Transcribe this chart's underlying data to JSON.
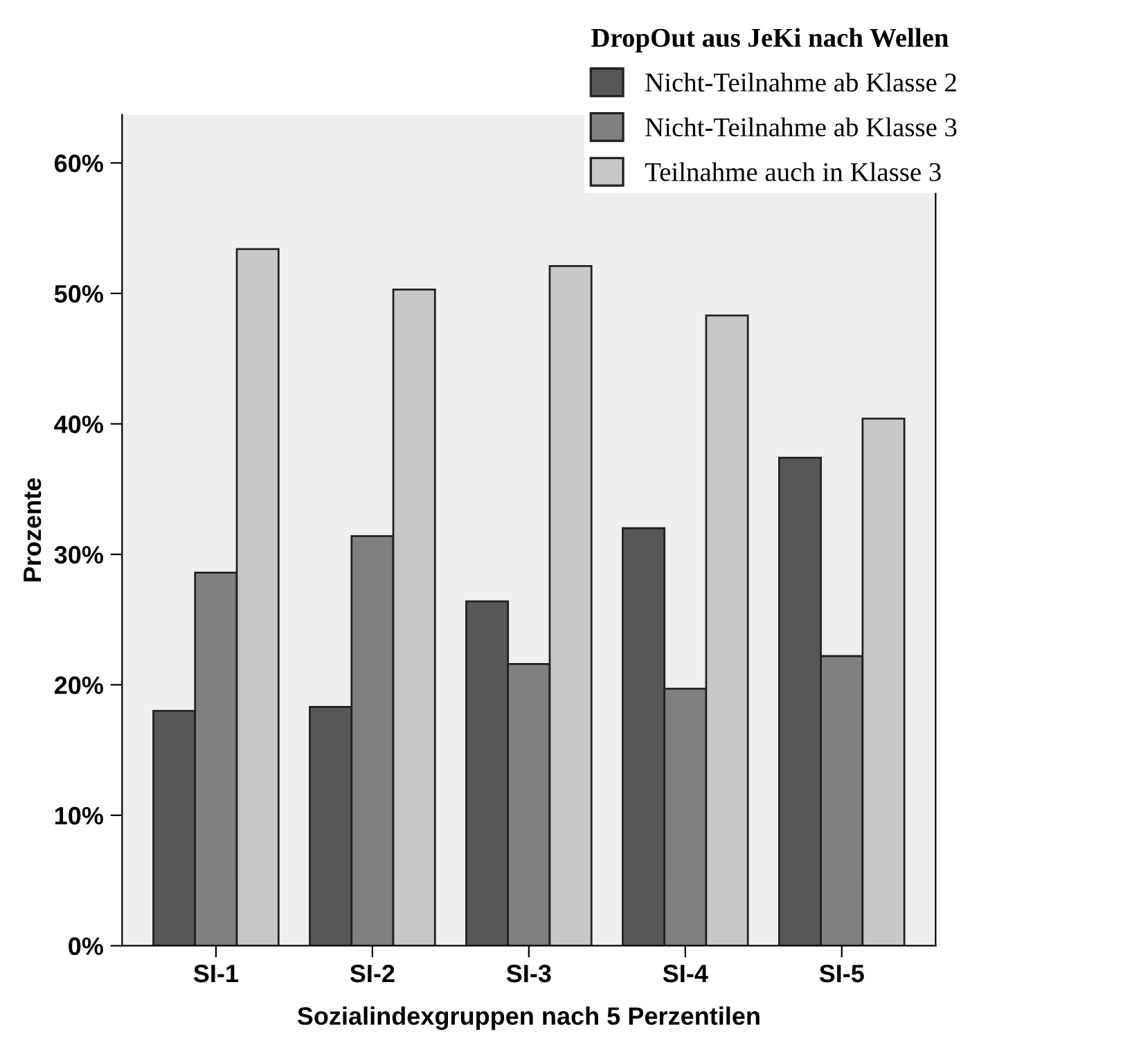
{
  "chart_data": {
    "type": "bar",
    "xlabel": "Sozialindexgruppen nach 5 Perzentilen",
    "ylabel": "Prozente",
    "legend_title": "DropOut aus JeKi nach Wellen",
    "categories": [
      "SI-1",
      "SI-2",
      "SI-3",
      "SI-4",
      "SI-5"
    ],
    "series": [
      {
        "name": "Nicht-Teilnahme ab Klasse 2",
        "color": "#575757",
        "values": [
          18.0,
          18.3,
          26.4,
          32.0,
          37.4
        ]
      },
      {
        "name": "Nicht-Teilnahme ab Klasse 3",
        "color": "#808080",
        "values": [
          28.6,
          31.4,
          21.6,
          19.7,
          22.2
        ]
      },
      {
        "name": "Teilnahme auch in Klasse 3",
        "color": "#c8c8c8",
        "values": [
          53.4,
          50.3,
          52.1,
          48.3,
          40.4
        ]
      }
    ],
    "ylim": [
      0,
      63.7
    ],
    "yticks": [
      {
        "value": 0,
        "label": "0%"
      },
      {
        "value": 10,
        "label": "10%"
      },
      {
        "value": 20,
        "label": "20%"
      },
      {
        "value": 30,
        "label": "30%"
      },
      {
        "value": 40,
        "label": "40%"
      },
      {
        "value": 50,
        "label": "50%"
      },
      {
        "value": 60,
        "label": "60%"
      }
    ],
    "grid": false,
    "legend": "top right"
  }
}
